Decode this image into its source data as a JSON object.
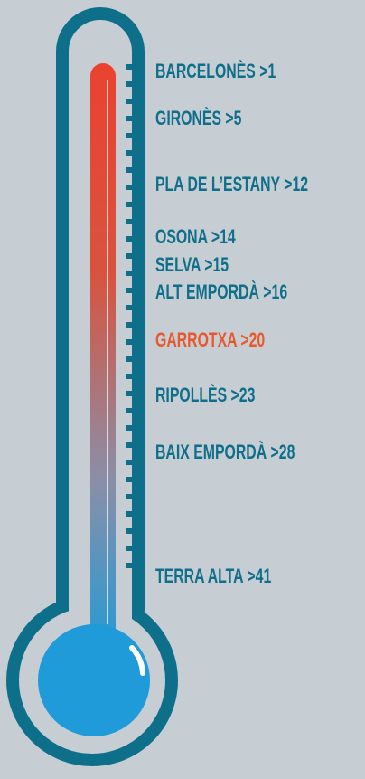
{
  "labels": [
    {
      "text": "BARCELONÈS >1"
    },
    {
      "text": "GIRONÈS >5"
    },
    {
      "text": "PLA DE L’ESTANY >12"
    },
    {
      "text": "OSONA >14"
    },
    {
      "text": "SELVA >15"
    },
    {
      "text": "ALT EMPORDÀ >16"
    },
    {
      "text": "GARROTXA >20",
      "highlight": true
    },
    {
      "text": "RIPOLLÈS >23"
    },
    {
      "text": "BAIX EMPORDÀ >28"
    },
    {
      "text": "TERRA ALTA >41"
    }
  ]
}
